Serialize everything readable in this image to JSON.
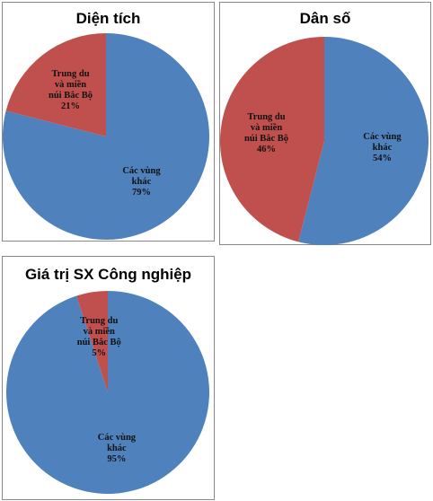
{
  "chart_data": [
    {
      "type": "pie",
      "title": "Diện tích",
      "categories": [
        "Các vùng khác",
        "Trung du và miền núi Bắc Bộ"
      ],
      "values": [
        79,
        21
      ],
      "value_labels": [
        "79%",
        "21%"
      ],
      "colors": [
        "#4f81bd",
        "#c0504d"
      ]
    },
    {
      "type": "pie",
      "title": "Dân số",
      "categories": [
        "Các vùng khác",
        "Trung du và miền núi Bắc Bộ"
      ],
      "values": [
        54,
        46
      ],
      "value_labels": [
        "54%",
        "46%"
      ],
      "colors": [
        "#4f81bd",
        "#c0504d"
      ]
    },
    {
      "type": "pie",
      "title": "Giá trị SX Công nghiệp",
      "categories": [
        "Các vùng khác",
        "Trung du và miền núi Bắc Bộ"
      ],
      "values": [
        95,
        5
      ],
      "value_labels": [
        "95%",
        "5%"
      ],
      "colors": [
        "#4f81bd",
        "#c0504d"
      ]
    }
  ]
}
